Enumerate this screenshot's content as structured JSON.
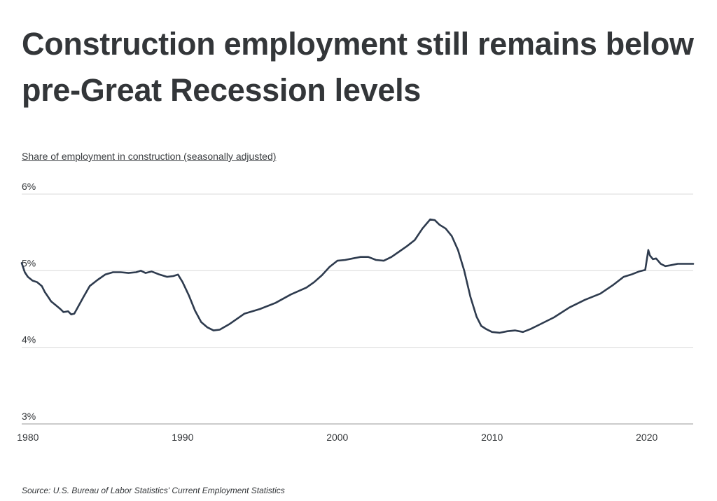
{
  "title": "Construction employment still remains below pre-Great Recession levels",
  "subtitle": "Share of employment in construction (seasonally adjusted)",
  "source": "Source: U.S. Bureau of Labor Statistics' Current Employment Statistics",
  "colors": {
    "line": "#2e3b4e",
    "grid": "#d9d9d9",
    "axis": "#999999",
    "text": "#333639"
  },
  "chart_data": {
    "type": "line",
    "title": "Construction employment still remains below pre-Great Recession levels",
    "ylabel": "Share of employment in construction (seasonally adjusted)",
    "xlabel": "",
    "xlim": [
      1979.6,
      2023.0
    ],
    "ylim": [
      3,
      6
    ],
    "x_ticks": [
      1980,
      1990,
      2000,
      2010,
      2020
    ],
    "x_tick_labels": [
      "1980",
      "1990",
      "2000",
      "2010",
      "2020"
    ],
    "y_ticks": [
      3,
      4,
      5,
      6
    ],
    "y_tick_labels": [
      "3%",
      "4%",
      "5%",
      "6%"
    ],
    "grid": true,
    "legend": "none",
    "series": [
      {
        "x": [
          1979.6,
          1979.8,
          1980.0,
          1980.3,
          1980.6,
          1980.9,
          1981.1,
          1981.3,
          1981.5,
          1981.8,
          1982.1,
          1982.3,
          1982.6,
          1982.8,
          1983.0,
          1983.3,
          1983.6,
          1984.0,
          1984.5,
          1985.0,
          1985.5,
          1986.0,
          1986.5,
          1987.0,
          1987.3,
          1987.6,
          1988.0,
          1988.5,
          1989.0,
          1989.4,
          1989.7,
          1990.0,
          1990.4,
          1990.8,
          1991.2,
          1991.6,
          1992.0,
          1992.4,
          1993.0,
          1994.0,
          1995.0,
          1996.0,
          1997.0,
          1998.0,
          1998.5,
          1999.0,
          1999.5,
          2000.0,
          2000.5,
          2001.0,
          2001.5,
          2002.0,
          2002.5,
          2003.0,
          2003.5,
          2004.0,
          2004.5,
          2005.0,
          2005.5,
          2006.0,
          2006.3,
          2006.6,
          2007.0,
          2007.4,
          2007.8,
          2008.2,
          2008.6,
          2009.0,
          2009.3,
          2009.6,
          2010.0,
          2010.5,
          2011.0,
          2011.5,
          2012.0,
          2012.5,
          2013.0,
          2014.0,
          2015.0,
          2016.0,
          2017.0,
          2017.8,
          2018.5,
          2019.0,
          2019.5,
          2019.9,
          2020.1,
          2020.2,
          2020.4,
          2020.6,
          2020.9,
          2021.2,
          2021.5,
          2022.0,
          2022.5,
          2022.8,
          2023.0
        ],
        "y": [
          5.1,
          4.98,
          4.92,
          4.87,
          4.85,
          4.8,
          4.72,
          4.66,
          4.6,
          4.55,
          4.5,
          4.46,
          4.47,
          4.43,
          4.44,
          4.55,
          4.66,
          4.8,
          4.88,
          4.95,
          4.98,
          4.98,
          4.97,
          4.98,
          5.0,
          4.97,
          4.99,
          4.95,
          4.92,
          4.93,
          4.95,
          4.85,
          4.68,
          4.48,
          4.33,
          4.26,
          4.22,
          4.23,
          4.3,
          4.44,
          4.5,
          4.58,
          4.69,
          4.78,
          4.85,
          4.94,
          5.05,
          5.13,
          5.14,
          5.16,
          5.18,
          5.18,
          5.14,
          5.13,
          5.18,
          5.25,
          5.32,
          5.4,
          5.55,
          5.67,
          5.66,
          5.6,
          5.55,
          5.45,
          5.27,
          5.0,
          4.66,
          4.4,
          4.28,
          4.24,
          4.2,
          4.19,
          4.21,
          4.22,
          4.2,
          4.24,
          4.29,
          4.39,
          4.52,
          4.62,
          4.7,
          4.81,
          4.92,
          4.95,
          4.99,
          5.01,
          5.27,
          5.2,
          5.15,
          5.16,
          5.09,
          5.06,
          5.07,
          5.09,
          5.09,
          5.09,
          5.09
        ]
      }
    ]
  }
}
